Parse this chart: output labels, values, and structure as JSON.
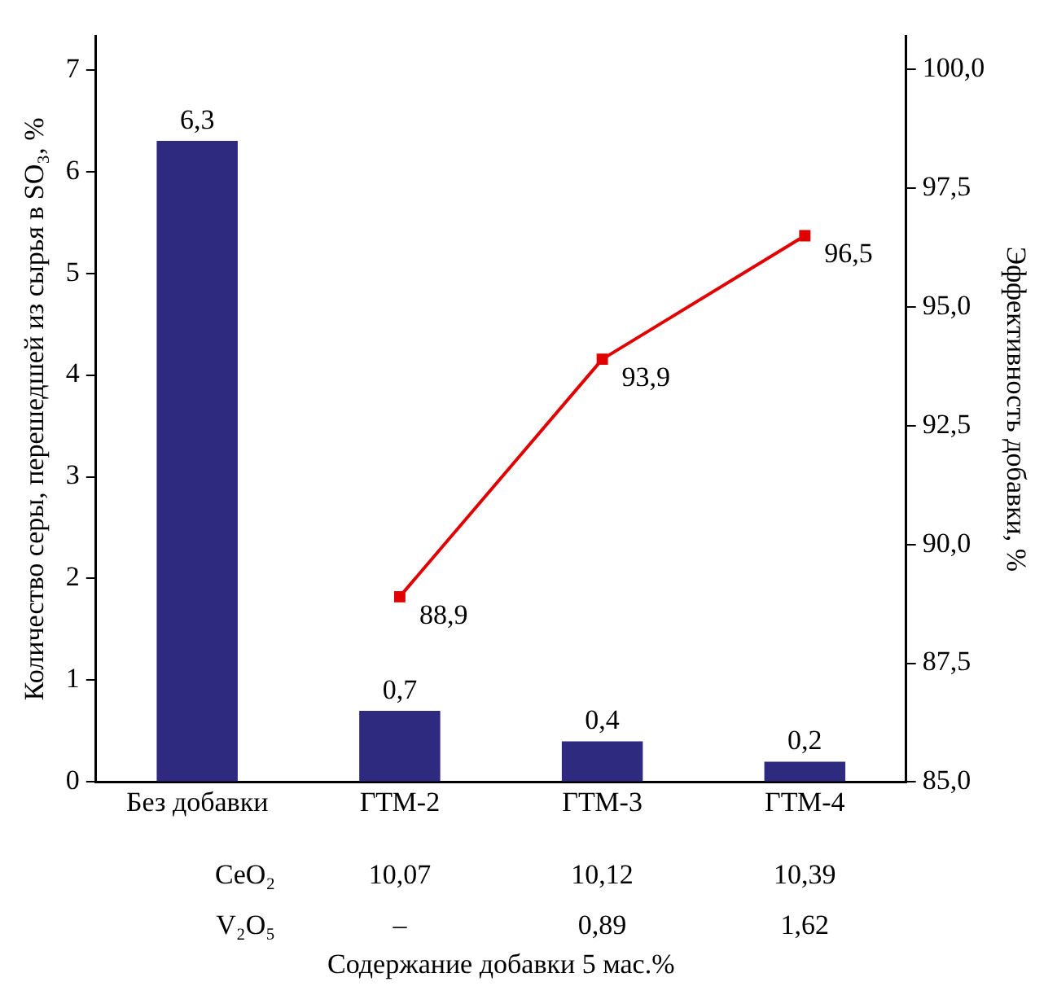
{
  "chart_data": {
    "type": "bar",
    "xlabel": "Содержание добавки 5 мас.%",
    "ylabel": "Количество серы, перешедшей из сырья в SO₃, %",
    "y2label": "Эффективность добавки, %",
    "categories": [
      "Без добавки",
      "ГТМ-2",
      "ГТМ-3",
      "ГТМ-4"
    ],
    "series": [
      {
        "color": "#2e2a80",
        "values": [
          6.3,
          0.7,
          0.4,
          0.2
        ],
        "value_labels": [
          "6,3",
          "0,7",
          "0,4",
          "0,2"
        ]
      },
      {
        "type": "line",
        "axis": "y2",
        "color": "#e00000",
        "marker": "square",
        "values": [
          null,
          88.9,
          93.9,
          96.5
        ],
        "value_labels": [
          null,
          "88,9",
          "93,9",
          "96,5"
        ]
      }
    ],
    "ylim": [
      0,
      7.33
    ],
    "yticks": [
      0,
      1,
      2,
      3,
      4,
      5,
      6,
      7
    ],
    "y2lim": [
      85,
      100.7
    ],
    "y2ticks": [
      {
        "value": 85,
        "label": "85,0"
      },
      {
        "value": 87.5,
        "label": "87,5"
      },
      {
        "value": 90,
        "label": "90,0"
      },
      {
        "value": 92.5,
        "label": "92,5"
      },
      {
        "value": 95,
        "label": "95,0"
      },
      {
        "value": 97.5,
        "label": "97,5"
      },
      {
        "value": 100,
        "label": "100,0"
      }
    ],
    "annotations": [
      "CeO₂",
      "10,07",
      "10,12",
      "10,39",
      "V₂O₅",
      "–",
      "0,89",
      "1,62"
    ],
    "grid": false,
    "legend": false
  }
}
